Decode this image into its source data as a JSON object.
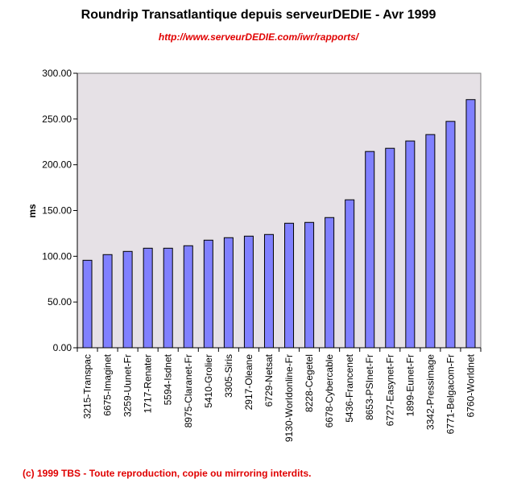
{
  "chart_data": {
    "type": "bar",
    "title": "Roundrip Transatlantique depuis serveurDEDIE - Avr 1999",
    "subtitle": "http://www.serveurDEDIE.com/iwr/rapports/",
    "xlabel": "",
    "ylabel": "ms",
    "ylim": [
      0,
      300
    ],
    "yticks": [
      "0.00",
      "50.00",
      "100.00",
      "150.00",
      "200.00",
      "250.00",
      "300.00"
    ],
    "grid": false,
    "categories": [
      "3215-Transpac",
      "6675-Imaginet",
      "3259-Uunet-Fr",
      "1717-Renater",
      "5594-Isdnet",
      "8975-Claranet-Fr",
      "5410-Grolier",
      "3305-Siris",
      "2917-Oleane",
      "6729-Netsat",
      "9130-Worldonline-Fr",
      "8228-Cegetel",
      "6678-Cybercable",
      "5436-Francenet",
      "8653-PSInet-Fr",
      "6727-Easynet-Fr",
      "1899-Eunet-Fr",
      "3342-Pressimage",
      "6771-Belgacom-Fr",
      "6760-Worldnet"
    ],
    "values": [
      95.6,
      101.8,
      105.3,
      108.8,
      108.8,
      111.5,
      117.6,
      120.3,
      122.0,
      123.8,
      136.1,
      137.0,
      142.3,
      161.7,
      214.5,
      218.0,
      226.0,
      233.0,
      247.4,
      271.2
    ],
    "colors": {
      "bar": "#8080ff",
      "plot_bg": "#e6e1e6",
      "title": "#000000",
      "subtitle": "#e00000"
    }
  },
  "footer": "(c) 1999 TBS - Toute reproduction, copie ou mirroring interdits."
}
